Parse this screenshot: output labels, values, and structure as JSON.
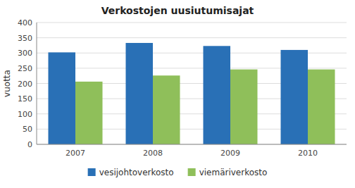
{
  "chart_data": {
    "type": "bar",
    "title": "Verkostojen uusiutumisajat",
    "ylabel": "vuotta",
    "categories": [
      "2007",
      "2008",
      "2009",
      "2010"
    ],
    "series": [
      {
        "name": "vesijohtoverkosto",
        "color": "#2970B6",
        "values": [
          302,
          333,
          323,
          310
        ]
      },
      {
        "name": "viemäriverkosto",
        "color": "#8FBF5A",
        "values": [
          206,
          226,
          246,
          246
        ]
      }
    ],
    "ylim": [
      0,
      400
    ],
    "yticks": [
      0,
      50,
      100,
      150,
      200,
      250,
      300,
      350,
      400
    ],
    "grid": true,
    "legend": "bottom"
  }
}
